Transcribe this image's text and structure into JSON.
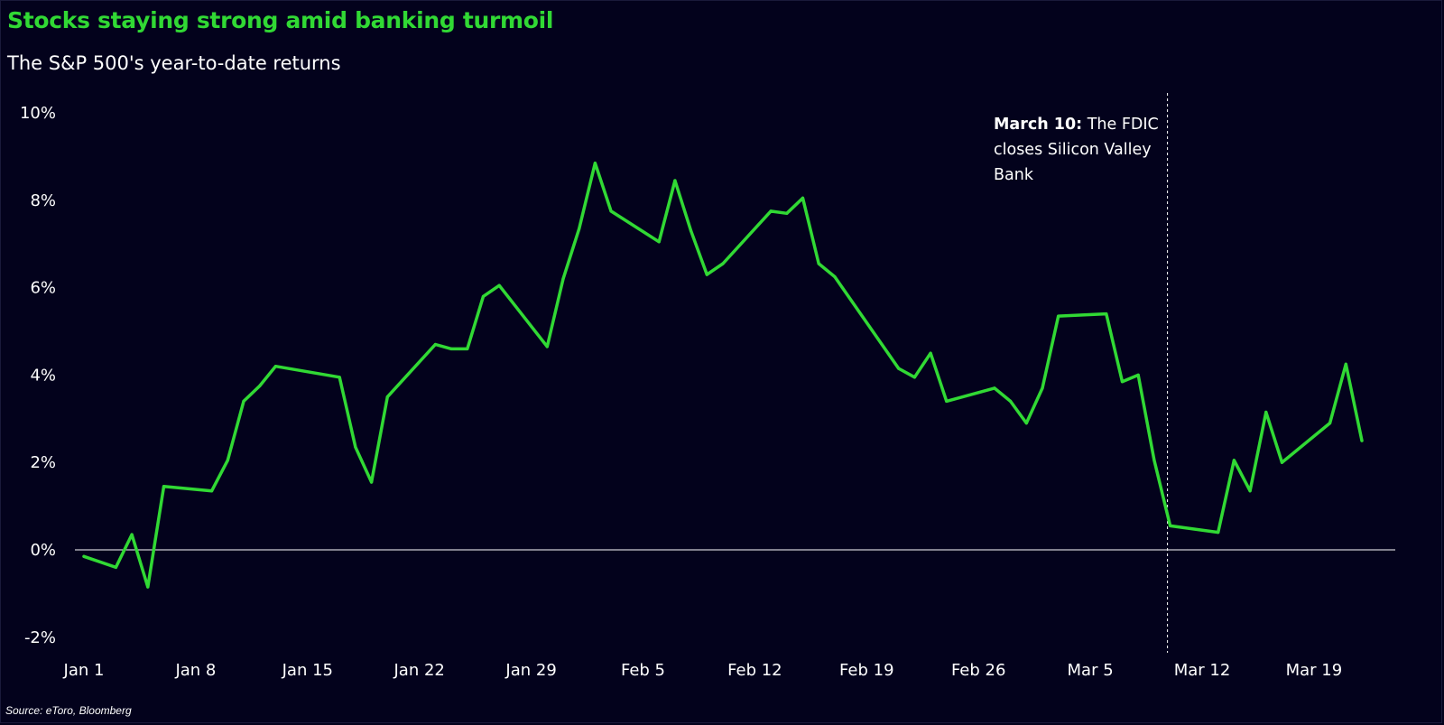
{
  "title": "Stocks staying strong amid banking turmoil",
  "subtitle": "The S&P 500's year-to-date returns",
  "source": "Source: eToro, Bloomberg",
  "annotation": {
    "bold": "March 10:",
    "text": " The FDIC closes Silicon Valley Bank"
  },
  "colors": {
    "background": "#03021c",
    "line": "#31d934",
    "text": "#ffffff"
  },
  "chart_data": {
    "type": "line",
    "title": "Stocks staying strong amid banking turmoil",
    "subtitle": "The S&P 500's year-to-date returns",
    "xlabel": "",
    "ylabel": "",
    "ylim": [
      -2,
      10
    ],
    "y_ticks": [
      -2,
      0,
      2,
      4,
      6,
      8,
      10
    ],
    "y_tick_labels": [
      "-2%",
      "0%",
      "2%",
      "4%",
      "6%",
      "8%",
      "10%"
    ],
    "x_tick_labels": [
      "Jan 1",
      "Jan 8",
      "Jan 15",
      "Jan 22",
      "Jan 29",
      "Feb 5",
      "Feb 12",
      "Feb 19",
      "Feb 26",
      "Mar 5",
      "Mar 12",
      "Mar 19"
    ],
    "x_range": [
      "Jan 1",
      "Mar 24"
    ],
    "grid": false,
    "zero_line": true,
    "annotation_date": "Mar 10",
    "series": [
      {
        "values": [
          {
            "x": "Jan 1",
            "y": -0.15
          },
          {
            "x": "Jan 3",
            "y": -0.4
          },
          {
            "x": "Jan 4",
            "y": 0.35
          },
          {
            "x": "Jan 5",
            "y": -0.85
          },
          {
            "x": "Jan 6",
            "y": 1.45
          },
          {
            "x": "Jan 9",
            "y": 1.35
          },
          {
            "x": "Jan 10",
            "y": 2.05
          },
          {
            "x": "Jan 11",
            "y": 3.4
          },
          {
            "x": "Jan 12",
            "y": 3.75
          },
          {
            "x": "Jan 13",
            "y": 4.2
          },
          {
            "x": "Jan 17",
            "y": 3.95
          },
          {
            "x": "Jan 18",
            "y": 2.35
          },
          {
            "x": "Jan 19",
            "y": 1.55
          },
          {
            "x": "Jan 20",
            "y": 3.5
          },
          {
            "x": "Jan 23",
            "y": 4.7
          },
          {
            "x": "Jan 24",
            "y": 4.6
          },
          {
            "x": "Jan 25",
            "y": 4.6
          },
          {
            "x": "Jan 26",
            "y": 5.8
          },
          {
            "x": "Jan 27",
            "y": 6.05
          },
          {
            "x": "Jan 30",
            "y": 4.65
          },
          {
            "x": "Jan 31",
            "y": 6.2
          },
          {
            "x": "Feb 1",
            "y": 7.35
          },
          {
            "x": "Feb 2",
            "y": 8.85
          },
          {
            "x": "Feb 3",
            "y": 7.75
          },
          {
            "x": "Feb 6",
            "y": 7.05
          },
          {
            "x": "Feb 7",
            "y": 8.45
          },
          {
            "x": "Feb 8",
            "y": 7.3
          },
          {
            "x": "Feb 9",
            "y": 6.3
          },
          {
            "x": "Feb 10",
            "y": 6.55
          },
          {
            "x": "Feb 13",
            "y": 7.75
          },
          {
            "x": "Feb 14",
            "y": 7.7
          },
          {
            "x": "Feb 15",
            "y": 8.05
          },
          {
            "x": "Feb 16",
            "y": 6.55
          },
          {
            "x": "Feb 17",
            "y": 6.25
          },
          {
            "x": "Feb 21",
            "y": 4.15
          },
          {
            "x": "Feb 22",
            "y": 3.95
          },
          {
            "x": "Feb 23",
            "y": 4.5
          },
          {
            "x": "Feb 24",
            "y": 3.4
          },
          {
            "x": "Feb 27",
            "y": 3.7
          },
          {
            "x": "Feb 28",
            "y": 3.4
          },
          {
            "x": "Mar 1",
            "y": 2.9
          },
          {
            "x": "Mar 2",
            "y": 3.7
          },
          {
            "x": "Mar 3",
            "y": 5.35
          },
          {
            "x": "Mar 6",
            "y": 5.4
          },
          {
            "x": "Mar 7",
            "y": 3.85
          },
          {
            "x": "Mar 8",
            "y": 4.0
          },
          {
            "x": "Mar 9",
            "y": 2.05
          },
          {
            "x": "Mar 10",
            "y": 0.55
          },
          {
            "x": "Mar 13",
            "y": 0.4
          },
          {
            "x": "Mar 14",
            "y": 2.05
          },
          {
            "x": "Mar 15",
            "y": 1.35
          },
          {
            "x": "Mar 16",
            "y": 3.15
          },
          {
            "x": "Mar 17",
            "y": 2.0
          },
          {
            "x": "Mar 20",
            "y": 2.9
          },
          {
            "x": "Mar 21",
            "y": 4.25
          },
          {
            "x": "Mar 22",
            "y": 2.5
          }
        ]
      }
    ]
  }
}
